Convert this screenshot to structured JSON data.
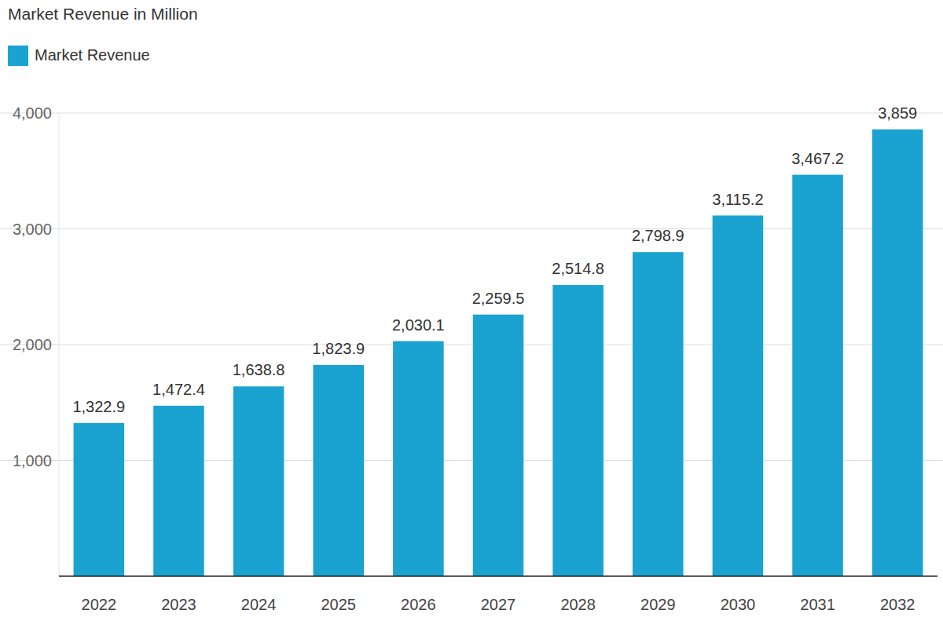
{
  "chart_data": {
    "type": "bar",
    "title": "Market Revenue in Million",
    "categories": [
      "2022",
      "2023",
      "2024",
      "2025",
      "2026",
      "2027",
      "2028",
      "2029",
      "2030",
      "2031",
      "2032"
    ],
    "series": [
      {
        "name": "Market Revenue",
        "color": "#1aa3d0",
        "values": [
          1322.9,
          1472.4,
          1638.8,
          1823.9,
          2030.1,
          2259.5,
          2514.8,
          2798.9,
          3115.2,
          3467.2,
          3859
        ],
        "value_labels": [
          "1,322.9",
          "1,472.4",
          "1,638.8",
          "1,823.9",
          "2,030.1",
          "2,259.5",
          "2,514.8",
          "2,798.9",
          "3,115.2",
          "3,467.2",
          "3,859"
        ]
      }
    ],
    "ylim": [
      0,
      4000
    ],
    "yticks": [
      {
        "value": 1000,
        "label": "1,000"
      },
      {
        "value": 2000,
        "label": "2,000"
      },
      {
        "value": 3000,
        "label": "3,000"
      },
      {
        "value": 4000,
        "label": "4,000"
      }
    ],
    "grid": true,
    "legend": "top-left",
    "data_labels": true
  }
}
